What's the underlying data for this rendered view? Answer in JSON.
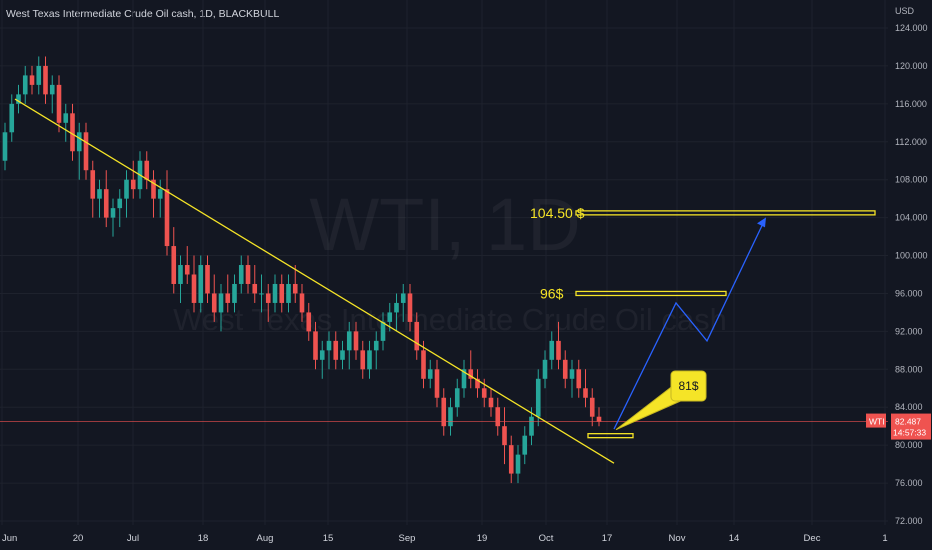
{
  "header": {
    "title": "West Texas Intermediate Crude Oil cash, 1D, BLACKBULL"
  },
  "currency": "USD",
  "watermark": {
    "symbol": "WTI, 1D",
    "name": "West Texas Intermediate Crude Oil cash"
  },
  "price_tag": {
    "symbol": "WTI",
    "price": "82.487",
    "countdown": "14:57:33",
    "value": 82.487
  },
  "colors": {
    "background": "#131722",
    "up": "#26a69a",
    "down": "#ef5350",
    "trendline": "#f5e427",
    "projection": "#2962ff",
    "price_line": "#ef5350"
  },
  "annotations": {
    "target_1": {
      "label": "104.50 $",
      "price": 104.5
    },
    "target_2": {
      "label": "96$",
      "price": 96
    },
    "callout": {
      "label": "81$",
      "price": 81
    }
  },
  "chart_data": {
    "type": "candlestick",
    "y_axis": {
      "ticks": [
        "124.000",
        "120.000",
        "116.000",
        "112.000",
        "108.000",
        "104.000",
        "100.000",
        "96.000",
        "92.000",
        "88.000",
        "84.000",
        "80.000",
        "76.000",
        "72.000"
      ],
      "range": [
        71,
        125
      ],
      "side": "right"
    },
    "x_axis": {
      "ticks": [
        "Jun",
        "20",
        "Jul",
        "18",
        "Aug",
        "15",
        "Sep",
        "19",
        "Oct",
        "17",
        "Nov",
        "14",
        "Dec",
        "1"
      ]
    },
    "candles": [
      [
        110,
        114,
        109,
        113
      ],
      [
        113,
        117,
        112,
        116
      ],
      [
        116,
        118,
        115,
        117
      ],
      [
        117,
        120,
        116,
        119
      ],
      [
        119,
        120,
        117,
        118
      ],
      [
        118,
        121,
        117,
        120
      ],
      [
        120,
        121,
        116,
        117
      ],
      [
        117,
        119,
        115,
        118
      ],
      [
        118,
        119,
        113,
        114
      ],
      [
        114,
        116,
        112,
        115
      ],
      [
        115,
        116,
        110,
        111
      ],
      [
        111,
        114,
        108,
        113
      ],
      [
        113,
        114,
        108,
        109
      ],
      [
        109,
        110,
        104,
        106
      ],
      [
        106,
        108,
        104,
        107
      ],
      [
        107,
        109,
        103,
        104
      ],
      [
        104,
        106,
        102,
        105
      ],
      [
        105,
        107,
        103,
        106
      ],
      [
        106,
        109,
        104,
        108
      ],
      [
        108,
        110,
        106,
        107
      ],
      [
        107,
        111,
        106,
        110
      ],
      [
        110,
        111,
        107,
        108
      ],
      [
        108,
        109,
        104,
        106
      ],
      [
        106,
        108,
        104,
        107
      ],
      [
        107,
        109,
        100,
        101
      ],
      [
        101,
        103,
        96,
        97
      ],
      [
        97,
        100,
        95,
        99
      ],
      [
        99,
        101,
        97,
        98
      ],
      [
        98,
        100,
        94,
        95
      ],
      [
        95,
        100,
        94,
        99
      ],
      [
        99,
        100,
        95,
        96
      ],
      [
        96,
        98,
        93,
        94
      ],
      [
        94,
        97,
        92,
        96
      ],
      [
        96,
        98,
        94,
        95
      ],
      [
        95,
        98,
        94,
        97
      ],
      [
        97,
        100,
        96,
        99
      ],
      [
        99,
        100,
        96,
        97
      ],
      [
        97,
        99,
        95,
        96
      ],
      [
        96,
        98,
        94,
        96
      ],
      [
        96,
        97,
        93,
        95
      ],
      [
        95,
        98,
        94,
        97
      ],
      [
        97,
        98,
        94,
        95
      ],
      [
        95,
        98,
        94,
        97
      ],
      [
        97,
        99,
        95,
        96
      ],
      [
        96,
        97,
        93,
        94
      ],
      [
        94,
        95,
        91,
        92
      ],
      [
        92,
        93,
        88,
        89
      ],
      [
        89,
        91,
        87,
        90
      ],
      [
        90,
        92,
        88,
        91
      ],
      [
        91,
        92,
        88,
        89
      ],
      [
        89,
        91,
        88,
        90
      ],
      [
        90,
        93,
        88,
        92
      ],
      [
        92,
        93,
        89,
        90
      ],
      [
        90,
        91,
        87,
        88
      ],
      [
        88,
        91,
        87,
        90
      ],
      [
        90,
        92,
        88,
        91
      ],
      [
        91,
        94,
        90,
        93
      ],
      [
        93,
        95,
        92,
        94
      ],
      [
        94,
        96,
        92,
        95
      ],
      [
        95,
        97,
        93,
        96
      ],
      [
        96,
        97,
        92,
        93
      ],
      [
        93,
        94,
        89,
        90
      ],
      [
        90,
        91,
        86,
        87
      ],
      [
        87,
        89,
        86,
        88
      ],
      [
        88,
        89,
        84,
        85
      ],
      [
        85,
        86,
        81,
        82
      ],
      [
        82,
        85,
        81,
        84
      ],
      [
        84,
        87,
        83,
        86
      ],
      [
        86,
        89,
        85,
        88
      ],
      [
        88,
        90,
        86,
        87
      ],
      [
        87,
        88,
        85,
        86
      ],
      [
        86,
        87,
        84,
        85
      ],
      [
        85,
        86,
        83,
        84
      ],
      [
        84,
        85,
        81,
        82
      ],
      [
        82,
        84,
        78,
        80
      ],
      [
        80,
        81,
        76,
        77
      ],
      [
        77,
        80,
        76,
        79
      ],
      [
        79,
        82,
        78,
        81
      ],
      [
        81,
        84,
        80,
        83
      ],
      [
        83,
        88,
        82,
        87
      ],
      [
        87,
        90,
        86,
        89
      ],
      [
        89,
        92,
        88,
        91
      ],
      [
        91,
        93,
        88,
        89
      ],
      [
        89,
        90,
        86,
        87
      ],
      [
        87,
        89,
        85,
        88
      ],
      [
        88,
        89,
        85,
        86
      ],
      [
        86,
        88,
        84,
        85
      ],
      [
        85,
        86,
        82,
        83
      ],
      [
        83,
        84,
        82,
        82.487
      ]
    ],
    "trendline": [
      [
        0,
        116.5
      ],
      [
        88,
        80
      ]
    ],
    "projection_path": [
      [
        88,
        81.5
      ],
      [
        96,
        95
      ],
      [
        101,
        91
      ],
      [
        107,
        104
      ]
    ]
  }
}
